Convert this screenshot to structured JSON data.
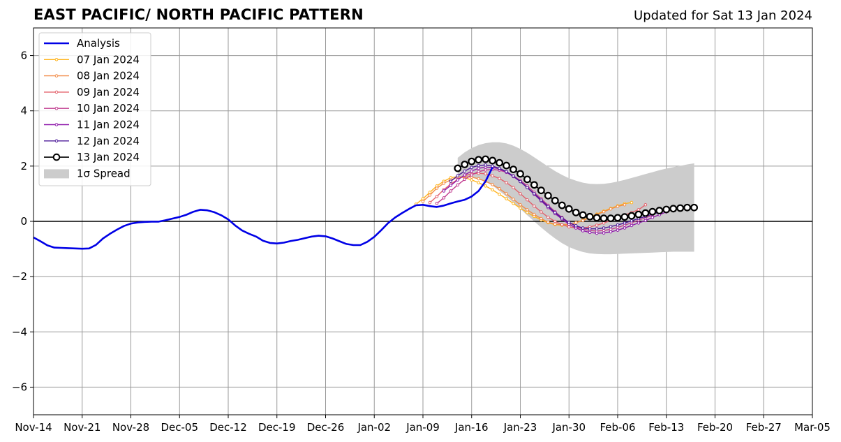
{
  "header": {
    "title": "EAST PACIFIC/ NORTH PACIFIC PATTERN",
    "updated": "Updated for Sat 13 Jan 2024"
  },
  "chart_data": {
    "type": "line",
    "title": "EAST PACIFIC/ NORTH PACIFIC PATTERN",
    "xlabel": "",
    "ylabel": "",
    "xlim": [
      "2023-11-14",
      "2024-03-05"
    ],
    "ylim": [
      -7,
      7
    ],
    "grid": true,
    "legend_position": "top-left",
    "x_ticks": [
      "Nov-14",
      "Nov-21",
      "Nov-28",
      "Dec-05",
      "Dec-12",
      "Dec-19",
      "Dec-26",
      "Jan-02",
      "Jan-09",
      "Jan-16",
      "Jan-23",
      "Jan-30",
      "Feb-06",
      "Feb-13",
      "Feb-20",
      "Feb-27",
      "Mar-05"
    ],
    "y_ticks": [
      "6",
      "4",
      "2",
      "0",
      "−2",
      "−4",
      "−6"
    ],
    "y_tick_values": [
      6,
      4,
      2,
      0,
      -2,
      -4,
      -6
    ],
    "analysis": {
      "name": "Analysis",
      "color": "#0000e6",
      "start_date": "2023-11-14",
      "values": [
        -0.58,
        -0.72,
        -0.87,
        -0.95,
        -0.96,
        -0.97,
        -0.98,
        -0.99,
        -0.98,
        -0.85,
        -0.62,
        -0.45,
        -0.3,
        -0.17,
        -0.08,
        -0.04,
        -0.02,
        -0.01,
        -0.01,
        0.04,
        0.1,
        0.16,
        0.24,
        0.35,
        0.42,
        0.4,
        0.33,
        0.22,
        0.07,
        -0.15,
        -0.33,
        -0.45,
        -0.55,
        -0.7,
        -0.78,
        -0.8,
        -0.77,
        -0.71,
        -0.67,
        -0.61,
        -0.55,
        -0.52,
        -0.54,
        -0.62,
        -0.72,
        -0.82,
        -0.86,
        -0.86,
        -0.74,
        -0.56,
        -0.32,
        -0.06,
        0.14,
        0.3,
        0.45,
        0.58,
        0.6,
        0.55,
        0.52,
        0.57,
        0.65,
        0.72,
        0.78,
        0.9,
        1.1,
        1.45,
        1.95
      ]
    },
    "forecasts": [
      {
        "name": "07 Jan 2024",
        "color": "#ffb31a",
        "start_date": "2024-01-08",
        "values": [
          0.62,
          0.82,
          1.05,
          1.28,
          1.45,
          1.58,
          1.62,
          1.58,
          1.5,
          1.4,
          1.28,
          1.14,
          0.98,
          0.82,
          0.65,
          0.48,
          0.32,
          0.18,
          0.05,
          -0.05,
          -0.12,
          -0.14,
          -0.12,
          -0.05,
          0.05,
          0.15,
          0.26,
          0.37,
          0.47,
          0.56,
          0.64,
          0.68
        ]
      },
      {
        "name": "08 Jan 2024",
        "color": "#f28c48",
        "start_date": "2024-01-09",
        "values": [
          0.72,
          0.95,
          1.2,
          1.38,
          1.5,
          1.6,
          1.62,
          1.6,
          1.54,
          1.45,
          1.33,
          1.18,
          1.0,
          0.8,
          0.6,
          0.42,
          0.25,
          0.1,
          -0.03,
          -0.1,
          -0.12,
          -0.1,
          -0.05,
          0.03,
          0.13,
          0.24,
          0.35,
          0.45,
          0.54,
          0.6
        ]
      },
      {
        "name": "09 Jan 2024",
        "color": "#e3606b",
        "start_date": "2024-01-10",
        "values": [
          0.68,
          0.9,
          1.15,
          1.35,
          1.52,
          1.65,
          1.72,
          1.74,
          1.72,
          1.65,
          1.55,
          1.4,
          1.22,
          1.0,
          0.78,
          0.55,
          0.34,
          0.15,
          0.0,
          -0.12,
          -0.2,
          -0.24,
          -0.24,
          -0.2,
          -0.14,
          -0.06,
          0.03,
          0.13,
          0.23,
          0.32,
          0.42,
          0.6
        ]
      },
      {
        "name": "10 Jan 2024",
        "color": "#c13c8f",
        "start_date": "2024-01-11",
        "values": [
          0.65,
          0.85,
          1.1,
          1.32,
          1.52,
          1.68,
          1.8,
          1.86,
          1.88,
          1.85,
          1.78,
          1.65,
          1.48,
          1.28,
          1.05,
          0.82,
          0.58,
          0.35,
          0.14,
          -0.04,
          -0.18,
          -0.28,
          -0.33,
          -0.35,
          -0.33,
          -0.29,
          -0.22,
          -0.14,
          -0.05,
          0.04,
          0.13,
          0.22
        ]
      },
      {
        "name": "11 Jan 2024",
        "color": "#8f1aab",
        "start_date": "2024-01-12",
        "values": [
          1.1,
          1.3,
          1.5,
          1.68,
          1.82,
          1.92,
          1.96,
          1.95,
          1.9,
          1.78,
          1.62,
          1.44,
          1.22,
          0.98,
          0.74,
          0.5,
          0.28,
          0.08,
          -0.1,
          -0.24,
          -0.34,
          -0.4,
          -0.43,
          -0.42,
          -0.38,
          -0.32,
          -0.24,
          -0.15,
          -0.06,
          0.03,
          0.14,
          0.24,
          0.34
        ]
      },
      {
        "name": "12 Jan 2024",
        "color": "#4c1a99",
        "start_date": "2024-01-13",
        "values": [
          1.45,
          1.65,
          1.82,
          1.95,
          2.02,
          2.04,
          2.0,
          1.92,
          1.8,
          1.64,
          1.44,
          1.22,
          1.0,
          0.77,
          0.54,
          0.32,
          0.12,
          -0.04,
          -0.16,
          -0.24,
          -0.27,
          -0.27,
          -0.24,
          -0.19,
          -0.13,
          -0.06,
          0.02,
          0.1,
          0.18,
          0.26,
          0.33,
          0.4
        ]
      },
      {
        "name": "13 Jan 2024",
        "color": "#000000",
        "start_date": "2024-01-14",
        "values": [
          1.92,
          2.06,
          2.17,
          2.23,
          2.25,
          2.2,
          2.12,
          2.02,
          1.88,
          1.72,
          1.52,
          1.32,
          1.12,
          0.93,
          0.75,
          0.58,
          0.45,
          0.32,
          0.23,
          0.17,
          0.13,
          0.11,
          0.11,
          0.13,
          0.16,
          0.2,
          0.25,
          0.3,
          0.35,
          0.39,
          0.43,
          0.46,
          0.48,
          0.5,
          0.5
        ]
      }
    ],
    "spread": {
      "name": "1σ Spread",
      "color": "#cccccc",
      "start_date": "2024-01-14",
      "upper": [
        2.3,
        2.5,
        2.65,
        2.76,
        2.83,
        2.86,
        2.86,
        2.82,
        2.74,
        2.62,
        2.48,
        2.32,
        2.15,
        1.98,
        1.82,
        1.68,
        1.56,
        1.47,
        1.4,
        1.36,
        1.35,
        1.36,
        1.39,
        1.44,
        1.5,
        1.57,
        1.64,
        1.71,
        1.78,
        1.85,
        1.91,
        1.96,
        2.01,
        2.06,
        2.1
      ],
      "lower": [
        1.58,
        1.6,
        1.6,
        1.55,
        1.45,
        1.3,
        1.1,
        0.9,
        0.68,
        0.45,
        0.22,
        0.0,
        -0.22,
        -0.43,
        -0.62,
        -0.79,
        -0.93,
        -1.03,
        -1.11,
        -1.16,
        -1.18,
        -1.19,
        -1.19,
        -1.18,
        -1.17,
        -1.16,
        -1.15,
        -1.14,
        -1.13,
        -1.12,
        -1.11,
        -1.1,
        -1.1,
        -1.1,
        -1.1
      ]
    }
  }
}
